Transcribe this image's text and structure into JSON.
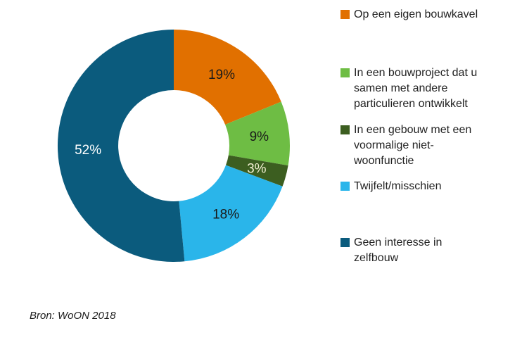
{
  "chart_data": {
    "type": "pie",
    "subtype": "donut",
    "title": "",
    "direction": "clockwise",
    "start_angle_deg": 0,
    "inner_radius_ratio": 0.48,
    "legend_position": "right",
    "slices": [
      {
        "label": "Op een eigen bouwkavel",
        "value": 19,
        "pct_label": "19%",
        "color": "#E17000",
        "label_color": "#1A1A1A"
      },
      {
        "label": "In een bouwproject dat u\nsamen met andere\nparticulieren ontwikkelt",
        "value": 9,
        "pct_label": "9%",
        "color": "#6EBD44",
        "label_color": "#1A1A1A"
      },
      {
        "label": "In een gebouw met een\nvoormalige niet-\nwoonfunctie",
        "value": 3,
        "pct_label": "3%",
        "color": "#3C5E20",
        "label_color": "#F2EFD3"
      },
      {
        "label": "Twijfelt/misschien",
        "value": 18,
        "pct_label": "18%",
        "color": "#2AB5EA",
        "label_color": "#1A1A1A"
      },
      {
        "label": "Geen interesse in\nzelfbouw",
        "value": 52,
        "pct_label": "52%",
        "color": "#0B5B7D",
        "label_color": "#FFFFFF"
      }
    ]
  },
  "source_note": "Bron: WoON 2018"
}
